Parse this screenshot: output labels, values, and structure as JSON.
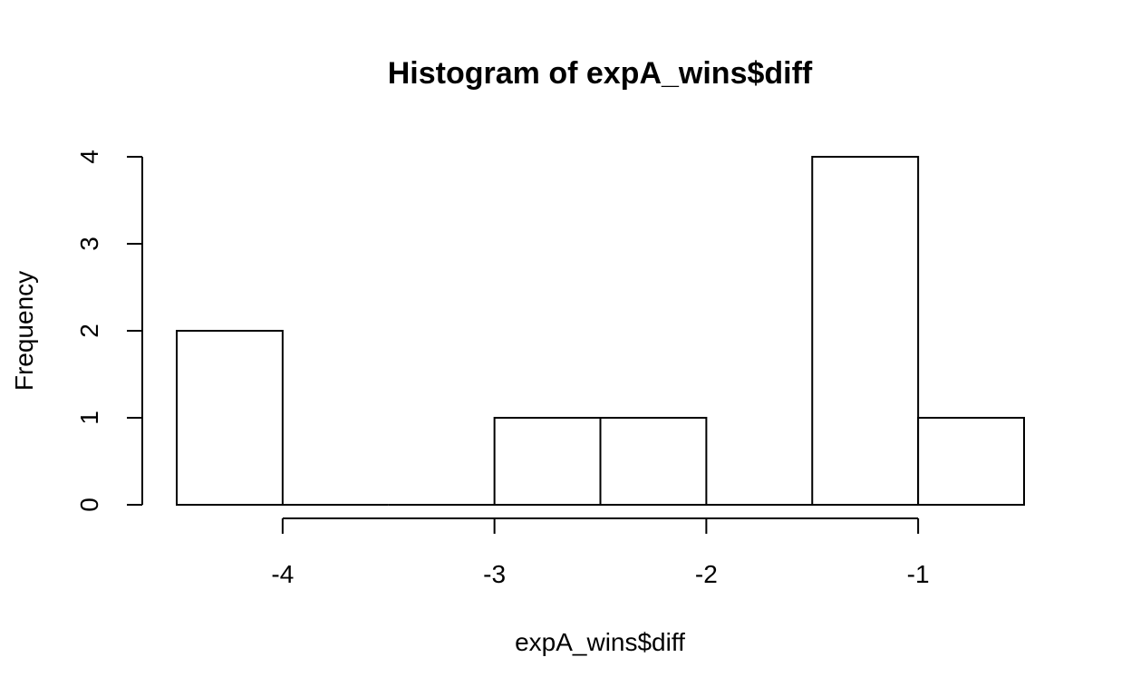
{
  "chart_data": {
    "type": "bar",
    "title": "Histogram of expA_wins$diff",
    "xlabel": "expA_wins$diff",
    "ylabel": "Frequency",
    "bins": [
      {
        "start": -4.5,
        "end": -4.0,
        "count": 2
      },
      {
        "start": -4.0,
        "end": -3.5,
        "count": 0
      },
      {
        "start": -3.5,
        "end": -3.0,
        "count": 0
      },
      {
        "start": -3.0,
        "end": -2.5,
        "count": 1
      },
      {
        "start": -2.5,
        "end": -2.0,
        "count": 1
      },
      {
        "start": -2.0,
        "end": -1.5,
        "count": 0
      },
      {
        "start": -1.5,
        "end": -1.0,
        "count": 4
      },
      {
        "start": -1.0,
        "end": -0.5,
        "count": 1
      }
    ],
    "xlim": [
      -4.5,
      -0.5
    ],
    "ylim": [
      0,
      4
    ],
    "x_ticks": [
      -4,
      -3,
      -2,
      -1
    ],
    "y_ticks": [
      0,
      1,
      2,
      3,
      4
    ],
    "grid": false
  }
}
